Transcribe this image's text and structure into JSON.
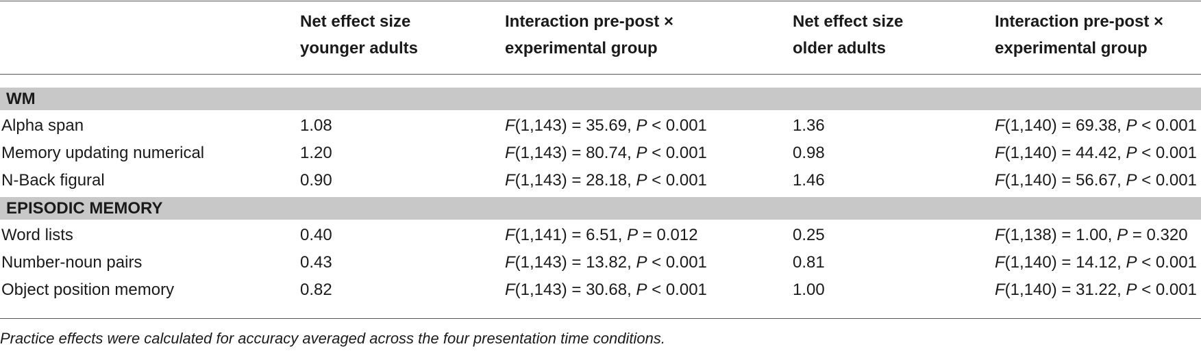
{
  "headers": {
    "col1": [
      "Net effect size",
      "younger adults"
    ],
    "col2": [
      "Interaction pre-post ×",
      "experimental group"
    ],
    "col3": [
      "Net effect size",
      "older adults"
    ],
    "col4": [
      "Interaction pre-post ×",
      "experimental group"
    ]
  },
  "sections": [
    {
      "title": "WM",
      "rows": [
        {
          "label": "Alpha span",
          "young_es": "1.08",
          "young_stat": {
            "df": "(1,143) = 35.69, ",
            "p": " < 0.001"
          },
          "old_es": "1.36",
          "old_stat": {
            "df": "(1,140) = 69.38, ",
            "p": " < 0.001"
          }
        },
        {
          "label": "Memory updating numerical",
          "young_es": "1.20",
          "young_stat": {
            "df": "(1,143) = 80.74, ",
            "p": " < 0.001"
          },
          "old_es": "0.98",
          "old_stat": {
            "df": "(1,140) = 44.42, ",
            "p": " < 0.001"
          }
        },
        {
          "label": "N-Back figural",
          "young_es": "0.90",
          "young_stat": {
            "df": "(1,143) = 28.18, ",
            "p": " < 0.001"
          },
          "old_es": "1.46",
          "old_stat": {
            "df": "(1,140) = 56.67, ",
            "p": " < 0.001"
          }
        }
      ]
    },
    {
      "title": "EPISODIC MEMORY",
      "rows": [
        {
          "label": "Word lists",
          "young_es": "0.40",
          "young_stat": {
            "df": "(1,141) = 6.51, ",
            "p": " = 0.012"
          },
          "old_es": "0.25",
          "old_stat": {
            "df": "(1,138) = 1.00, ",
            "p": " = 0.320"
          }
        },
        {
          "label": "Number-noun pairs",
          "young_es": "0.43",
          "young_stat": {
            "df": "(1,143) = 13.82, ",
            "p": " < 0.001"
          },
          "old_es": "0.81",
          "old_stat": {
            "df": "(1,140) = 14.12, ",
            "p": " < 0.001"
          }
        },
        {
          "label": "Object position memory",
          "young_es": "0.82",
          "young_stat": {
            "df": "(1,143) = 30.68, ",
            "p": " < 0.001"
          },
          "old_es": "1.00",
          "old_stat": {
            "df": "(1,140) = 31.22, ",
            "p": " < 0.001"
          }
        }
      ]
    }
  ],
  "stat_symbols": {
    "f": "F",
    "p": "P"
  },
  "footnote": "Practice effects were calculated for accuracy averaged across the four presentation time conditions."
}
